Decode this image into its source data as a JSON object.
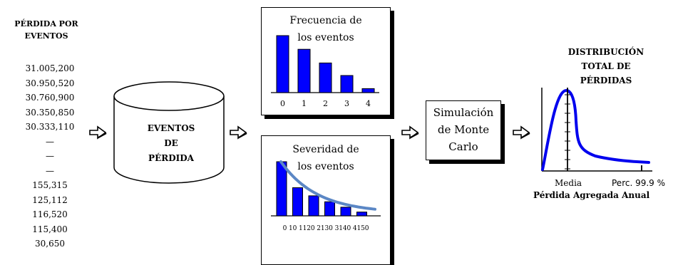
{
  "losses": {
    "title_line1": "PÉRDIDA POR",
    "title_line2": "EVENTOS",
    "values": [
      "31.005,200",
      "30.950,520",
      "30.760,900",
      "30.350,850",
      "30.333,110",
      "—",
      "—",
      "—",
      "155,315",
      "125,112",
      "116,520",
      "115,400",
      "30,650"
    ]
  },
  "database": {
    "line1": "EVENTOS",
    "line2": "DE",
    "line3": "PÉRDIDA"
  },
  "frequency": {
    "title_line1": "Frecuencia de",
    "title_line2": "los eventos",
    "categories": [
      "0",
      "1",
      "2",
      "3",
      "4"
    ],
    "values": [
      1.0,
      0.76,
      0.52,
      0.3,
      0.07
    ]
  },
  "severity": {
    "title_line1": "Severidad de",
    "title_line2": "los eventos",
    "tick_text": "0 10 1120 2130 3140 4150",
    "values": [
      1.0,
      0.52,
      0.37,
      0.26,
      0.16,
      0.07
    ],
    "curve_color": "#5b87c5"
  },
  "simulation": {
    "line1": "Simulación",
    "line2": "de Monte",
    "line3": "Carlo"
  },
  "distribution": {
    "title_line1": "DISTRIBUCIÓN",
    "title_line2": "TOTAL DE",
    "title_line3": "PÉRDIDAS",
    "label_mean": "Media",
    "label_percentile": "Perc. 99.9 %",
    "xlabel": "Pérdida Agregada Anual",
    "curve_color": "#0000ee"
  },
  "colors": {
    "bar": "#0000ff"
  },
  "arrows": [
    "arrow-1",
    "arrow-2",
    "arrow-3",
    "arrow-4"
  ]
}
